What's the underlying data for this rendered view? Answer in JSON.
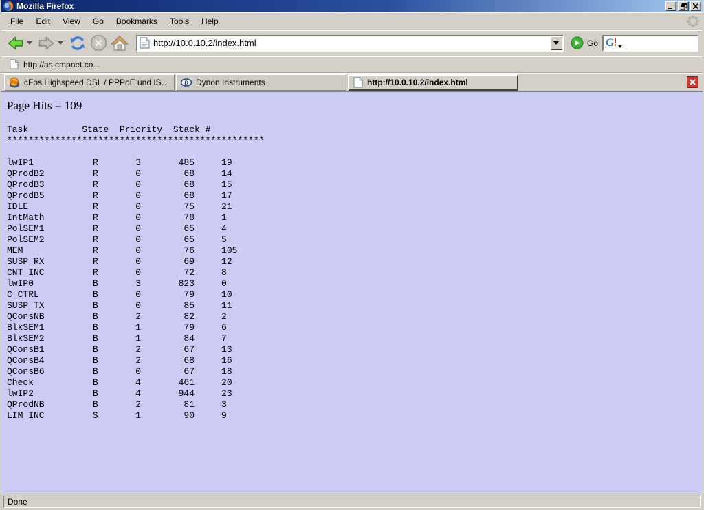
{
  "window": {
    "title": "Mozilla Firefox",
    "controls": {
      "minimize": "minimize",
      "restore": "restore",
      "close": "close"
    }
  },
  "menu": {
    "items": [
      {
        "u": "F",
        "rest": "ile"
      },
      {
        "u": "E",
        "rest": "dit"
      },
      {
        "u": "V",
        "rest": "iew"
      },
      {
        "u": "G",
        "rest": "o"
      },
      {
        "u": "B",
        "rest": "ookmarks"
      },
      {
        "u": "T",
        "rest": "ools"
      },
      {
        "u": "H",
        "rest": "elp"
      }
    ]
  },
  "navbar": {
    "url": "http://10.0.10.2/index.html",
    "go_label": "Go",
    "search_value": "",
    "search_engine": "Google"
  },
  "bookmarks_bar": {
    "items": [
      {
        "label": "http://as.cmpnet.co..."
      }
    ]
  },
  "tabs": [
    {
      "label": "cFos Highspeed DSL / PPPoE und ISDN CAP...",
      "icon": "cfos-icon",
      "active": false
    },
    {
      "label": "Dynon Instruments",
      "icon": "dynon-icon",
      "active": false
    },
    {
      "label": "http://10.0.10.2/index.html",
      "icon": "page-icon",
      "active": true
    }
  ],
  "page": {
    "hits_line": "Page Hits = 109",
    "table": {
      "header": "Task          State  Priority  Stack #",
      "separator": "************************************************",
      "columns": [
        "Task",
        "State",
        "Priority",
        "Stack",
        "#"
      ],
      "rows": [
        [
          "lwIP1",
          "R",
          "3",
          "485",
          "19"
        ],
        [
          "QProdB2",
          "R",
          "0",
          "68",
          "14"
        ],
        [
          "QProdB3",
          "R",
          "0",
          "68",
          "15"
        ],
        [
          "QProdB5",
          "R",
          "0",
          "68",
          "17"
        ],
        [
          "IDLE",
          "R",
          "0",
          "75",
          "21"
        ],
        [
          "IntMath",
          "R",
          "0",
          "78",
          "1"
        ],
        [
          "PolSEM1",
          "R",
          "0",
          "65",
          "4"
        ],
        [
          "PolSEM2",
          "R",
          "0",
          "65",
          "5"
        ],
        [
          "MEM",
          "R",
          "0",
          "76",
          "105"
        ],
        [
          "SUSP_RX",
          "R",
          "0",
          "69",
          "12"
        ],
        [
          "CNT_INC",
          "R",
          "0",
          "72",
          "8"
        ],
        [
          "lwIP0",
          "B",
          "3",
          "823",
          "0"
        ],
        [
          "C_CTRL",
          "B",
          "0",
          "79",
          "10"
        ],
        [
          "SUSP_TX",
          "B",
          "0",
          "85",
          "11"
        ],
        [
          "QConsNB",
          "B",
          "2",
          "82",
          "2"
        ],
        [
          "BlkSEM1",
          "B",
          "1",
          "79",
          "6"
        ],
        [
          "BlkSEM2",
          "B",
          "1",
          "84",
          "7"
        ],
        [
          "QConsB1",
          "B",
          "2",
          "67",
          "13"
        ],
        [
          "QConsB4",
          "B",
          "2",
          "68",
          "16"
        ],
        [
          "QConsB6",
          "B",
          "0",
          "67",
          "18"
        ],
        [
          "Check",
          "B",
          "4",
          "461",
          "20"
        ],
        [
          "lwIP2",
          "B",
          "4",
          "944",
          "23"
        ],
        [
          "QProdNB",
          "B",
          "2",
          "81",
          "3"
        ],
        [
          "LIM_INC",
          "S",
          "1",
          "90",
          "9"
        ]
      ]
    }
  },
  "statusbar": {
    "text": "Done"
  },
  "colors": {
    "page_bg": "#cbcbf3",
    "chrome_bg": "#d4d0c8",
    "titlebar_from": "#0a246a",
    "titlebar_to": "#a6caf0",
    "tab_close_red": "#cd3833"
  }
}
